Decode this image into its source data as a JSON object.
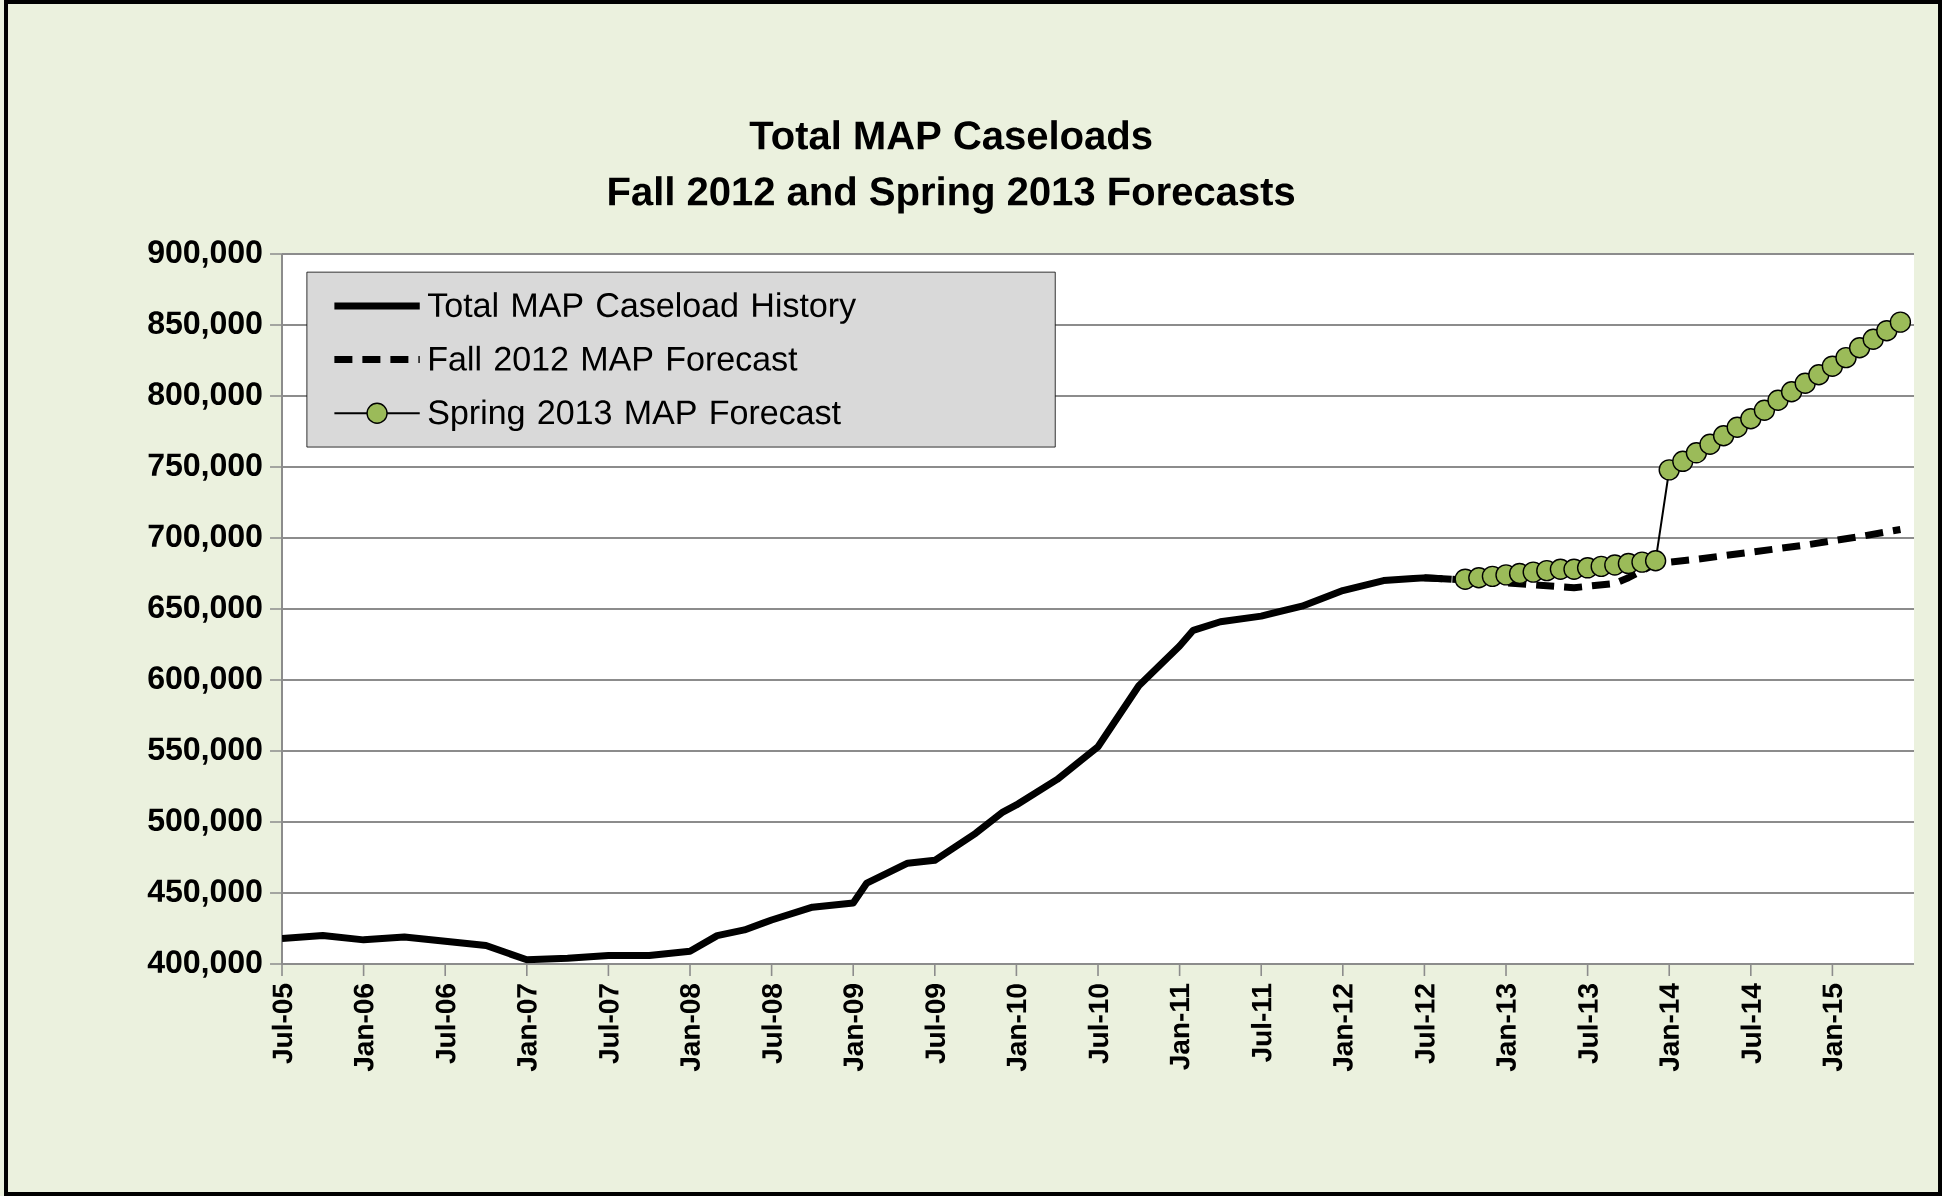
{
  "chart_data": {
    "type": "line",
    "title": "Total MAP Caseloads",
    "subtitle": "Fall 2012 and Spring 2013 Forecasts",
    "xlim": [
      "2005-07",
      "2015-07"
    ],
    "xticks": [
      {
        "value": "2005-07",
        "label": "Jul-05"
      },
      {
        "value": "2006-01",
        "label": "Jan-06"
      },
      {
        "value": "2006-07",
        "label": "Jul-06"
      },
      {
        "value": "2007-01",
        "label": "Jan-07"
      },
      {
        "value": "2007-07",
        "label": "Jul-07"
      },
      {
        "value": "2008-01",
        "label": "Jan-08"
      },
      {
        "value": "2008-07",
        "label": "Jul-08"
      },
      {
        "value": "2009-01",
        "label": "Jan-09"
      },
      {
        "value": "2009-07",
        "label": "Jul-09"
      },
      {
        "value": "2010-01",
        "label": "Jan-10"
      },
      {
        "value": "2010-07",
        "label": "Jul-10"
      },
      {
        "value": "2011-01",
        "label": "Jan-11"
      },
      {
        "value": "2011-07",
        "label": "Jul-11"
      },
      {
        "value": "2012-01",
        "label": "Jan-12"
      },
      {
        "value": "2012-07",
        "label": "Jul-12"
      },
      {
        "value": "2013-01",
        "label": "Jan-13"
      },
      {
        "value": "2013-07",
        "label": "Jul-13"
      },
      {
        "value": "2014-01",
        "label": "Jan-14"
      },
      {
        "value": "2014-07",
        "label": "Jul-14"
      },
      {
        "value": "2015-01",
        "label": "Jan-15"
      }
    ],
    "ylim": [
      400000,
      900000
    ],
    "yticks": [
      {
        "value": 400000,
        "label": "400,000"
      },
      {
        "value": 450000,
        "label": "450,000"
      },
      {
        "value": 500000,
        "label": "500,000"
      },
      {
        "value": 550000,
        "label": "550,000"
      },
      {
        "value": 600000,
        "label": "600,000"
      },
      {
        "value": 650000,
        "label": "650,000"
      },
      {
        "value": 700000,
        "label": "700,000"
      },
      {
        "value": 750000,
        "label": "750,000"
      },
      {
        "value": 800000,
        "label": "800,000"
      },
      {
        "value": 850000,
        "label": "850,000"
      },
      {
        "value": 900000,
        "label": "900,000"
      }
    ],
    "grid": "y",
    "legend": "top left",
    "series": [
      {
        "name": "Total MAP Caseload History",
        "color": "#000000",
        "line_style": "solid",
        "marker": "none",
        "x": [
          "2005-07",
          "2005-10",
          "2006-01",
          "2006-04",
          "2006-07",
          "2006-10",
          "2007-01",
          "2007-04",
          "2007-07",
          "2007-10",
          "2008-01",
          "2008-03",
          "2008-05",
          "2008-07",
          "2008-10",
          "2009-01",
          "2009-02",
          "2009-05",
          "2009-07",
          "2009-10",
          "2009-12",
          "2010-01",
          "2010-04",
          "2010-07",
          "2010-10",
          "2011-01",
          "2011-02",
          "2011-04",
          "2011-07",
          "2011-10",
          "2012-01",
          "2012-04",
          "2012-07",
          "2012-09"
        ],
        "values": [
          418000,
          420000,
          417000,
          419000,
          416000,
          413000,
          403000,
          404000,
          406000,
          406000,
          409000,
          420000,
          424000,
          431000,
          440000,
          443000,
          457000,
          471000,
          473000,
          492000,
          507000,
          512000,
          530000,
          553000,
          596000,
          624000,
          635000,
          641000,
          645000,
          652000,
          663000,
          670000,
          672000,
          671000
        ]
      },
      {
        "name": "Fall 2012 MAP Forecast",
        "color": "#000000",
        "line_style": "dashed",
        "marker": "none",
        "x": [
          "2012-07",
          "2012-11",
          "2013-03",
          "2013-06",
          "2013-09",
          "2013-10",
          "2013-12",
          "2014-03",
          "2014-07",
          "2014-11",
          "2015-03",
          "2015-06"
        ],
        "values": [
          672000,
          670000,
          667000,
          665000,
          668000,
          672000,
          682000,
          685000,
          690000,
          695000,
          701000,
          706000
        ]
      },
      {
        "name": "Spring 2013 MAP Forecast",
        "color": "#9bbb59",
        "line_style": "solid",
        "marker": "circle",
        "x": [
          "2012-10",
          "2012-11",
          "2012-12",
          "2013-01",
          "2013-02",
          "2013-03",
          "2013-04",
          "2013-05",
          "2013-06",
          "2013-07",
          "2013-08",
          "2013-09",
          "2013-10",
          "2013-11",
          "2013-12",
          "2014-01",
          "2014-02",
          "2014-03",
          "2014-04",
          "2014-05",
          "2014-06",
          "2014-07",
          "2014-08",
          "2014-09",
          "2014-10",
          "2014-11",
          "2014-12",
          "2015-01",
          "2015-02",
          "2015-03",
          "2015-04",
          "2015-05",
          "2015-06"
        ],
        "values": [
          671000,
          672000,
          673000,
          674000,
          675000,
          676000,
          677000,
          678000,
          678000,
          679000,
          680000,
          681000,
          682000,
          683000,
          684000,
          748000,
          754000,
          760000,
          766000,
          772000,
          778000,
          784000,
          790000,
          797000,
          803000,
          809000,
          815000,
          821000,
          827000,
          834000,
          840000,
          846000,
          852000
        ]
      }
    ]
  }
}
